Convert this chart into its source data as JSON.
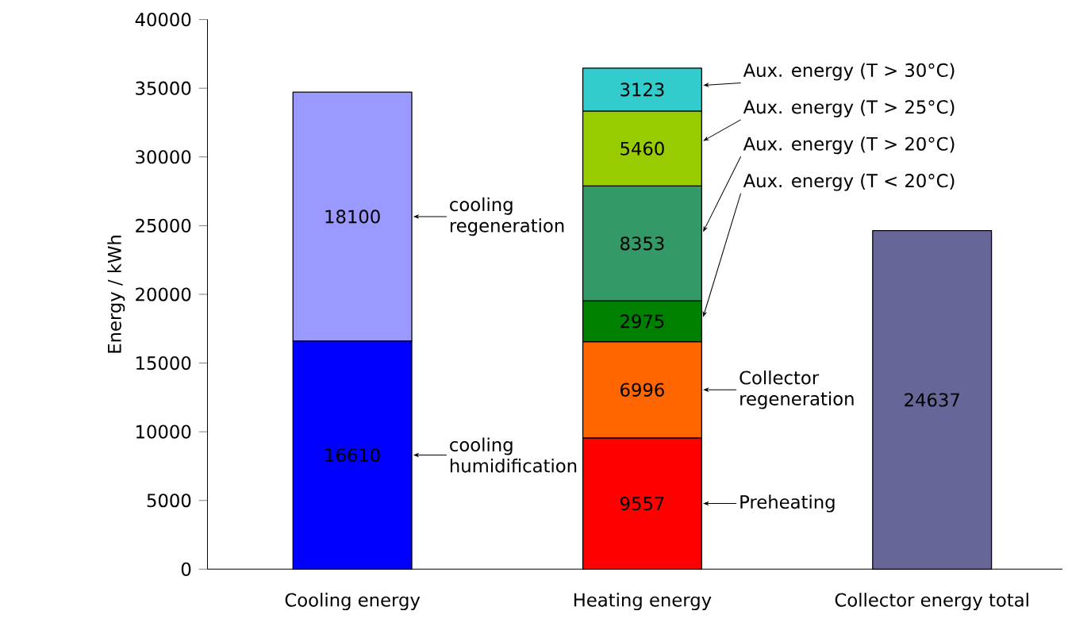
{
  "chart_data": {
    "type": "bar",
    "stacked": true,
    "data_labels": true,
    "legend": "right",
    "categories": [
      "Cooling energy",
      "Heating energy",
      "Collector energy total"
    ],
    "ylabel": "Energy / kWh",
    "ylim": [
      0,
      40000
    ],
    "yticks": [
      0,
      5000,
      10000,
      15000,
      20000,
      25000,
      30000,
      35000,
      40000
    ],
    "series": [
      {
        "name": "cooling humidification",
        "color": "#0000ff",
        "values": [
          16610,
          null,
          null
        ]
      },
      {
        "name": "cooling regeneration",
        "color": "#9999ff",
        "values": [
          18100,
          null,
          null
        ]
      },
      {
        "name": "Preheating",
        "color": "#ff0000",
        "values": [
          null,
          9557,
          null
        ]
      },
      {
        "name": "Collector regeneration",
        "color": "#ff6600",
        "values": [
          null,
          6996,
          null
        ]
      },
      {
        "name": "Aux. energy (T < 20°C)",
        "color": "#008000",
        "values": [
          null,
          2975,
          null
        ]
      },
      {
        "name": "Aux. energy (T > 20°C)",
        "color": "#339966",
        "values": [
          null,
          8353,
          null
        ]
      },
      {
        "name": "Aux. energy (T > 25°C)",
        "color": "#99cc00",
        "values": [
          null,
          5460,
          null
        ]
      },
      {
        "name": "Aux. energy (T > 30°C)",
        "color": "#33cccc",
        "values": [
          null,
          3123,
          null
        ]
      },
      {
        "color": "#666699",
        "values": [
          null,
          null,
          24637
        ]
      }
    ]
  }
}
